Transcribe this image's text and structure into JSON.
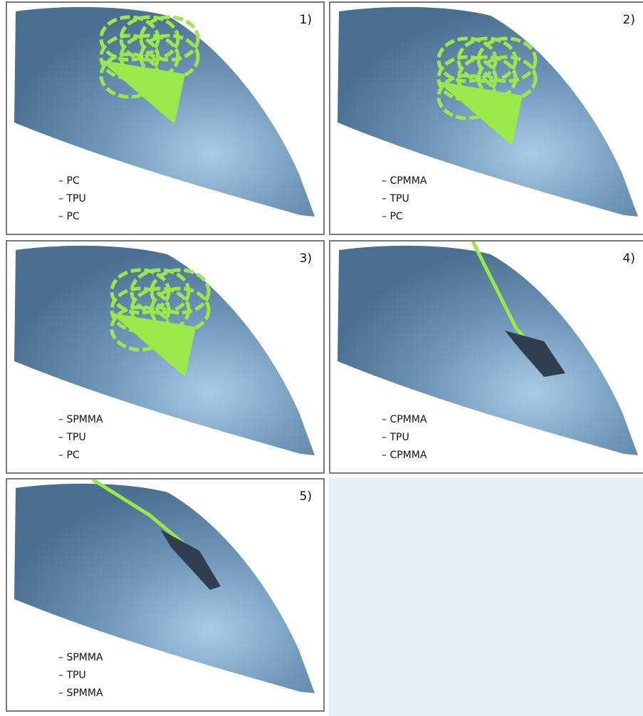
{
  "panels": [
    {
      "label": "1)",
      "layers": [
        "– PC",
        "– TPU",
        "– PC"
      ]
    },
    {
      "label": "2)",
      "layers": [
        "– CPMMA",
        "– TPU",
        "– PC"
      ]
    },
    {
      "label": "3)",
      "layers": [
        "– SPMMA",
        "– TPU",
        "– PC"
      ]
    },
    {
      "label": "4)",
      "layers": [
        "– CPMMA",
        "– TPU",
        "– CPMMA"
      ]
    },
    {
      "label": "5)",
      "layers": [
        "– SPMMA",
        "– TPU",
        "– SPMMA"
      ]
    }
  ]
}
